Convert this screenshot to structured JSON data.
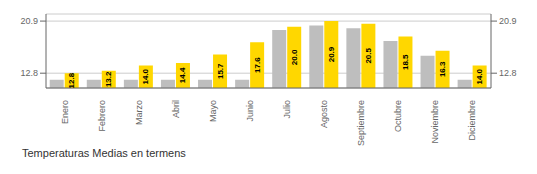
{
  "chart_data": {
    "type": "bar",
    "title": "Temperaturas Medias en termens",
    "categories": [
      "Enero",
      "Febrero",
      "Marzo",
      "Abril",
      "Mayo",
      "Junio",
      "Julio",
      "Agosto",
      "Septiembre",
      "Octubre",
      "Noviembre",
      "Diciembre"
    ],
    "series": [
      {
        "color": "#BEBEBE",
        "values": [
          11.8,
          11.8,
          11.8,
          11.8,
          11.8,
          11.8,
          19.5,
          20.2,
          19.8,
          17.8,
          15.5,
          11.8
        ]
      },
      {
        "color": "#FFD700",
        "values": [
          12.8,
          13.2,
          14.0,
          14.4,
          15.7,
          17.6,
          20.0,
          20.9,
          20.5,
          18.5,
          16.3,
          14.0
        ],
        "value_labels": [
          "12.8",
          "13.2",
          "14.0",
          "14.4",
          "15.7",
          "17.6",
          "20.0",
          "20.9",
          "20.5",
          "18.5",
          "16.3",
          "14.0"
        ],
        "data_labels": true
      }
    ],
    "ylim": [
      10.5,
      22.0
    ],
    "yticks": [
      12.8,
      20.9
    ],
    "y2lim": [
      10.5,
      22.0
    ],
    "y2ticks": [
      12.8,
      20.9
    ],
    "grid": true
  }
}
